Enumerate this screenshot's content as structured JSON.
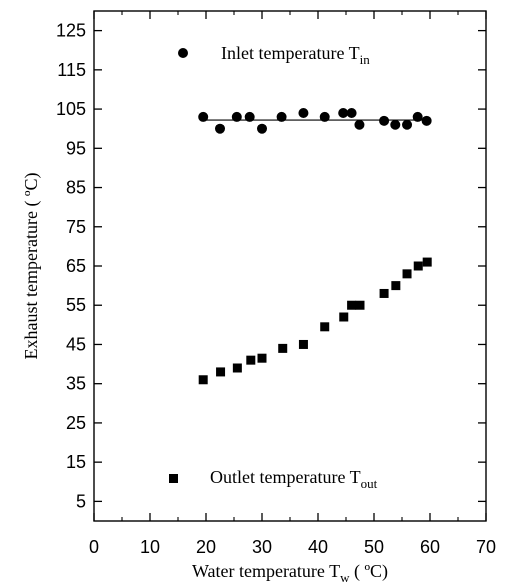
{
  "chart_data": {
    "type": "scatter",
    "xlabel_main": "Water temperature T",
    "xlabel_sub": "w",
    "xlabel_unit": " ( ºC)",
    "ylabel": "Exhaust temperature ( ºC)",
    "xlim": [
      0,
      70
    ],
    "ylim": [
      0,
      130
    ],
    "xticks": [
      0,
      10,
      20,
      30,
      40,
      50,
      60,
      70
    ],
    "yticks": [
      5,
      15,
      25,
      35,
      45,
      55,
      65,
      75,
      85,
      95,
      105,
      115,
      125
    ],
    "series": [
      {
        "name_main": "Inlet temperature T",
        "name_sub": "in",
        "marker": "circle",
        "x": [
          19.5,
          22.5,
          25.5,
          27.8,
          30.0,
          33.5,
          37.4,
          41.2,
          44.5,
          46.0,
          47.4,
          51.8,
          53.8,
          55.9,
          57.8,
          59.4
        ],
        "y": [
          103,
          100,
          103,
          103,
          100,
          103,
          104,
          103,
          104,
          104,
          101,
          102,
          101,
          101,
          103,
          102
        ],
        "fit_line": {
          "x": [
            19.5,
            59.5
          ],
          "y": [
            102.2,
            102.2
          ]
        }
      },
      {
        "name_main": "Outlet temperature T",
        "name_sub": "out",
        "marker": "square",
        "x": [
          19.5,
          22.6,
          25.6,
          28.0,
          30.0,
          33.7,
          37.4,
          41.2,
          44.6,
          46.0,
          47.5,
          51.8,
          53.9,
          55.9,
          57.9,
          59.5
        ],
        "y": [
          36,
          38,
          39,
          41,
          41.5,
          44,
          45,
          49.5,
          52,
          55,
          55,
          58,
          60,
          63,
          65,
          66
        ]
      }
    ],
    "legend": [
      {
        "series": 0,
        "placement": "upper-center"
      },
      {
        "series": 1,
        "placement": "lower-center"
      }
    ]
  }
}
